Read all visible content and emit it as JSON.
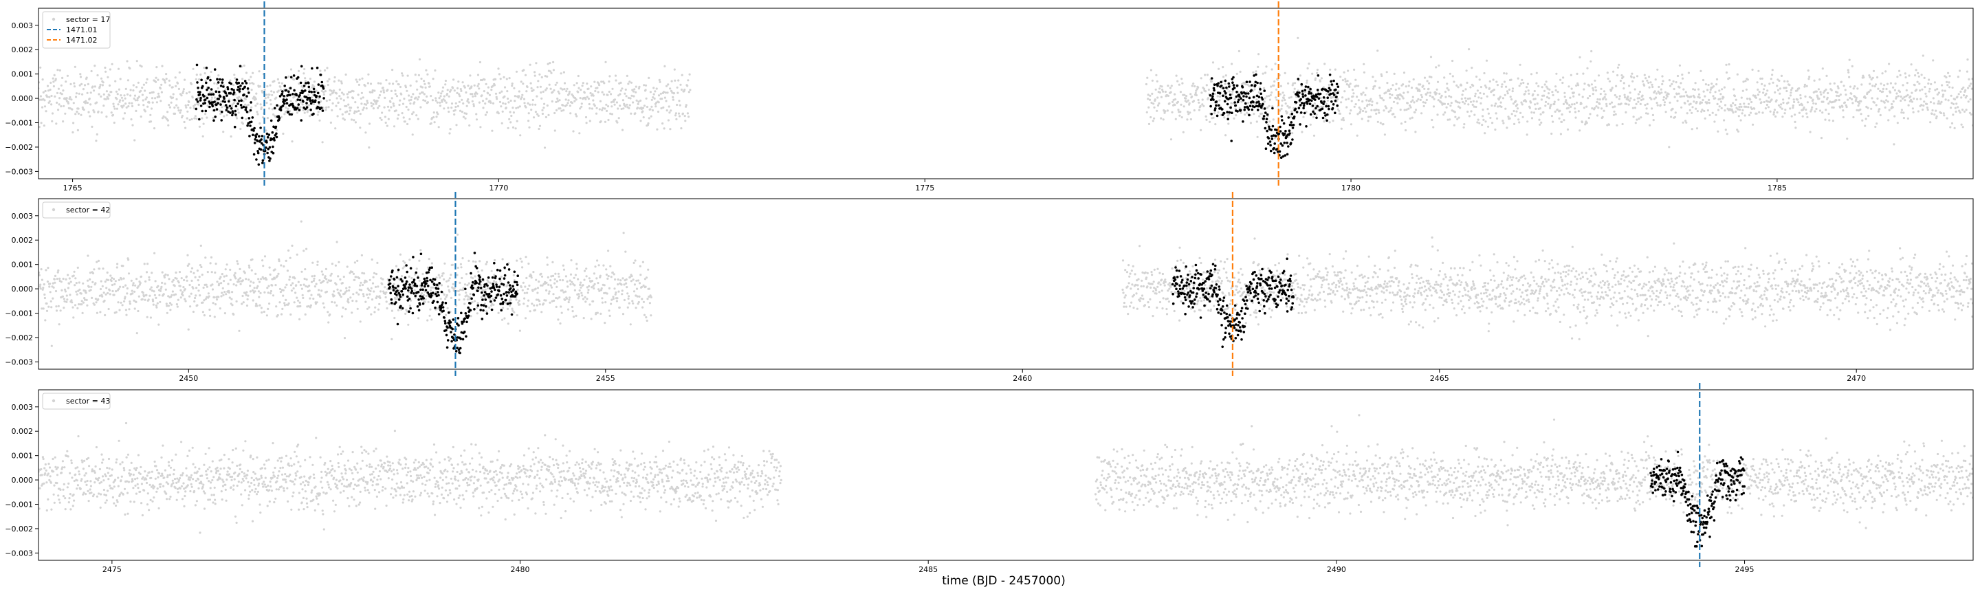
{
  "figure": {
    "xlabel": "time (BJD - 2457000)"
  },
  "chart_data": [
    {
      "type": "scatter",
      "legend": [
        {
          "label": "sector = 17",
          "kind": "marker",
          "color": "#d3d3d3"
        },
        {
          "label": "1471.01",
          "kind": "dashed-line",
          "color": "#1f77b4"
        },
        {
          "label": "1471.02",
          "kind": "dashed-line",
          "color": "#ff7f0e"
        }
      ],
      "legend_position": "upper-left",
      "xlim": [
        1764.6,
        1787.3
      ],
      "ylim": [
        -0.0033,
        0.0037
      ],
      "xticks": [
        1765,
        1770,
        1775,
        1780,
        1785
      ],
      "yticks": [
        0.003,
        0.002,
        0.001,
        0.0,
        -0.001,
        -0.002,
        -0.003
      ],
      "ytick_labels": [
        "0.003",
        "0.002",
        "0.001",
        "0.000",
        "−0.001",
        "−0.002",
        "−0.003"
      ],
      "background_segments": [
        [
          1764.6,
          1772.25
        ],
        [
          1777.6,
          1787.3
        ]
      ],
      "background_color": "#d3d3d3",
      "noise_sigma": 0.0006,
      "highlight_color": "#000000",
      "transits": [
        {
          "name": "1471.01",
          "time": 1767.25,
          "depth": 0.0019,
          "window": [
            1766.45,
            1767.95
          ],
          "color": "#1f77b4"
        },
        {
          "name": "1471.02",
          "time": 1779.15,
          "depth": 0.0017,
          "window": [
            1778.35,
            1779.85
          ],
          "color": "#ff7f0e"
        }
      ]
    },
    {
      "type": "scatter",
      "legend": [
        {
          "label": "sector = 42",
          "kind": "marker",
          "color": "#d3d3d3"
        }
      ],
      "legend_position": "upper-left",
      "xlim": [
        2448.2,
        2471.4
      ],
      "ylim": [
        -0.0033,
        0.0037
      ],
      "xticks": [
        2450,
        2455,
        2460,
        2465,
        2470
      ],
      "yticks": [
        0.003,
        0.002,
        0.001,
        0.0,
        -0.001,
        -0.002,
        -0.003
      ],
      "ytick_labels": [
        "0.003",
        "0.002",
        "0.001",
        "0.000",
        "−0.001",
        "−0.002",
        "−0.003"
      ],
      "background_segments": [
        [
          2448.2,
          2455.55
        ],
        [
          2461.2,
          2471.4
        ]
      ],
      "background_color": "#d3d3d3",
      "noise_sigma": 0.0006,
      "highlight_color": "#000000",
      "transits": [
        {
          "name": "1471.01",
          "time": 2453.2,
          "depth": 0.0018,
          "window": [
            2452.4,
            2453.95
          ],
          "color": "#1f77b4"
        },
        {
          "name": "1471.02",
          "time": 2462.52,
          "depth": 0.0016,
          "window": [
            2461.8,
            2463.25
          ],
          "color": "#ff7f0e"
        }
      ]
    },
    {
      "type": "scatter",
      "legend": [
        {
          "label": "sector = 43",
          "kind": "marker",
          "color": "#d3d3d3"
        }
      ],
      "legend_position": "upper-left",
      "xlim": [
        2474.1,
        2497.8
      ],
      "ylim": [
        -0.0033,
        0.0037
      ],
      "xticks": [
        2475,
        2480,
        2485,
        2490,
        2495
      ],
      "yticks": [
        0.003,
        0.002,
        0.001,
        0.0,
        -0.001,
        -0.002,
        -0.003
      ],
      "ytick_labels": [
        "0.003",
        "0.002",
        "0.001",
        "0.000",
        "−0.001",
        "−0.002",
        "−0.003"
      ],
      "background_segments": [
        [
          2474.1,
          2483.2
        ],
        [
          2487.05,
          2497.8
        ]
      ],
      "background_color": "#d3d3d3",
      "noise_sigma": 0.0006,
      "highlight_color": "#000000",
      "transits": [
        {
          "name": "1471.01",
          "time": 2494.45,
          "depth": 0.0018,
          "window": [
            2493.85,
            2495.0
          ],
          "color": "#1f77b4"
        }
      ]
    }
  ]
}
